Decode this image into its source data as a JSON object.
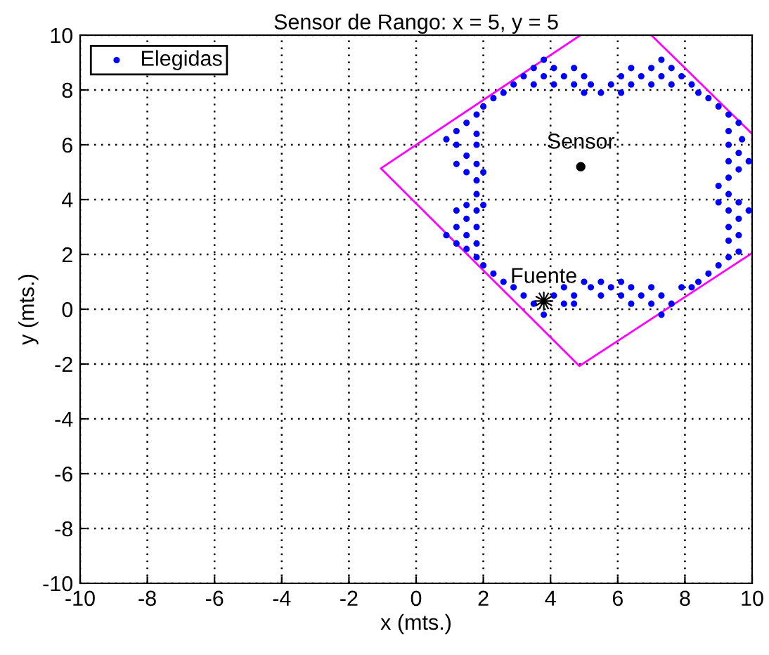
{
  "chart_data": {
    "type": "scatter",
    "title": "Sensor de Rango: x = 5, y = 5",
    "xlabel": "x (mts.)",
    "ylabel": "y (mts.)",
    "xlim": [
      -10,
      10
    ],
    "ylim": [
      -10,
      10
    ],
    "xticks": [
      -10,
      -8,
      -6,
      -4,
      -2,
      0,
      2,
      4,
      6,
      8,
      10
    ],
    "yticks": [
      -10,
      -8,
      -6,
      -4,
      -2,
      0,
      2,
      4,
      6,
      8,
      10
    ],
    "grid": true,
    "legend": "top left",
    "annotations": [
      {
        "text": "Sensor",
        "x": 4.9,
        "y": 5.2
      },
      {
        "text": "Fuente",
        "x": 3.8,
        "y": 0.3
      }
    ],
    "series": [
      {
        "name": "Elegidas",
        "color": "#0000ff",
        "marker": "circle",
        "x": [
          3.8,
          7.3,
          3.5,
          4.1,
          4.7,
          6.4,
          7.0,
          7.6,
          3.2,
          3.8,
          4.4,
          5.0,
          6.1,
          6.7,
          7.3,
          7.9,
          2.9,
          3.5,
          4.1,
          4.7,
          5.2,
          5.8,
          6.4,
          7.0,
          7.6,
          8.2,
          2.6,
          5.0,
          5.5,
          6.1,
          8.4,
          2.3,
          8.7,
          2.0,
          1.8,
          1.5,
          1.2,
          0.9,
          1.8,
          1.2,
          1.8,
          1.5,
          1.2,
          1.8,
          1.5,
          2.0,
          1.8,
          1.8,
          1.5,
          2.0,
          1.2,
          1.8,
          1.5,
          0.9,
          1.2,
          1.8,
          1.5,
          1.2,
          1.8,
          1.5,
          1.8,
          2.0,
          9.0,
          9.3,
          9.6,
          9.3,
          9.7,
          9.3,
          9.6,
          9.9,
          9.3,
          9.6,
          9.0,
          9.3,
          9.0,
          9.6,
          9.3,
          9.6,
          9.3,
          9.9,
          9.3,
          9.6,
          9.3,
          9.6,
          9.3,
          9.0,
          8.7,
          8.4,
          2.3,
          2.6,
          2.9,
          3.2,
          3.5,
          3.8,
          4.1,
          4.4,
          4.7,
          5.0,
          5.2,
          5.5,
          5.8,
          6.1,
          6.4,
          6.7,
          7.0,
          7.3,
          7.6,
          7.9,
          8.2,
          7.3,
          6.4,
          7.0,
          4.4,
          4.7,
          6.1,
          5.5
        ],
        "values": [
          9.1,
          9.1,
          8.8,
          8.8,
          8.8,
          8.8,
          8.8,
          8.8,
          8.5,
          8.5,
          8.5,
          8.5,
          8.5,
          8.5,
          8.5,
          8.5,
          8.2,
          8.2,
          8.2,
          8.2,
          8.2,
          8.2,
          8.2,
          8.2,
          8.2,
          8.2,
          7.9,
          7.9,
          7.9,
          7.9,
          7.9,
          7.7,
          7.7,
          7.4,
          7.1,
          6.8,
          6.5,
          6.2,
          6.4,
          6.0,
          6.0,
          5.6,
          5.3,
          5.3,
          5.0,
          5.0,
          4.7,
          4.2,
          3.8,
          3.8,
          3.6,
          3.6,
          3.3,
          2.7,
          3.0,
          3.0,
          2.7,
          2.4,
          2.4,
          2.2,
          1.9,
          1.6,
          7.4,
          7.1,
          6.8,
          6.5,
          6.2,
          6.0,
          5.7,
          5.4,
          5.4,
          5.1,
          4.5,
          4.8,
          3.9,
          3.9,
          4.2,
          3.3,
          3.6,
          3.6,
          3.0,
          2.7,
          2.5,
          2.1,
          1.9,
          1.6,
          1.3,
          1.0,
          1.3,
          1.0,
          0.8,
          0.5,
          0.2,
          -0.2,
          0.5,
          0.8,
          0.5,
          1.0,
          0.8,
          1.0,
          0.8,
          1.0,
          0.8,
          0.5,
          0.8,
          0.5,
          0.2,
          0.8,
          0.8,
          -0.2,
          0.2,
          0.2,
          0.2,
          0.2,
          0.5,
          0.5
        ]
      },
      {
        "type": "line",
        "color": "#ff00ff",
        "marker": "none",
        "x": [
          4.89,
          -1.05,
          4.86,
          9.99,
          null,
          7.0,
          9.99
        ],
        "values": [
          10,
          5.14,
          -2.07,
          2.04,
          null,
          10,
          6.41
        ]
      },
      {
        "color": "#000000",
        "marker": "circle",
        "x": [
          4.9
        ],
        "values": [
          5.2
        ]
      },
      {
        "color": "#000000",
        "marker": "star",
        "x": [
          3.8
        ],
        "values": [
          0.3
        ]
      }
    ]
  }
}
